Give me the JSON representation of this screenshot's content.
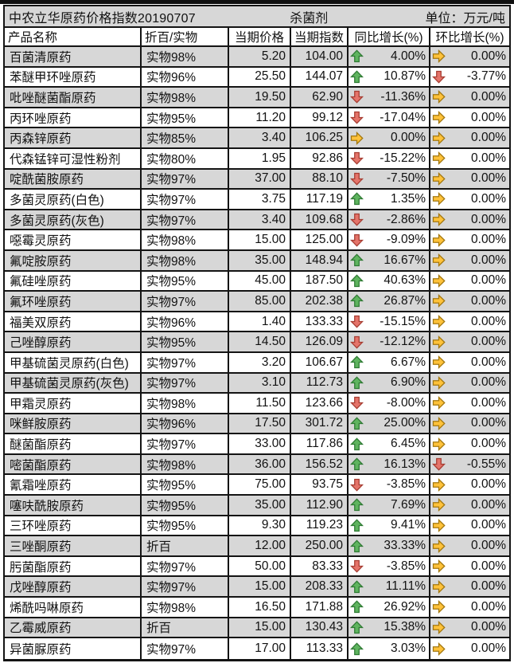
{
  "title": {
    "left": "中农立华原药价格指数20190707",
    "center": "杀菌剂",
    "right": "单位：万元/吨"
  },
  "table": {
    "columns": [
      "产品名称",
      "折百/实物",
      "当期价格",
      "当期指数",
      "同比增长(%)",
      "环比增长(%)"
    ],
    "rows": [
      {
        "name": "百菌清原药",
        "spec": "实物98%",
        "price": "5.20",
        "index": "104.00",
        "yoy": {
          "trend": "up",
          "value": "4.00%"
        },
        "mom": {
          "trend": "flat",
          "value": "0.00%"
        }
      },
      {
        "name": "苯醚甲环唑原药",
        "spec": "实物96%",
        "price": "25.50",
        "index": "144.07",
        "yoy": {
          "trend": "up",
          "value": "10.87%"
        },
        "mom": {
          "trend": "down",
          "value": "-3.77%"
        }
      },
      {
        "name": "吡唑醚菌酯原药",
        "spec": "实物98%",
        "price": "19.50",
        "index": "62.90",
        "yoy": {
          "trend": "down",
          "value": "-11.36%"
        },
        "mom": {
          "trend": "flat",
          "value": "0.00%"
        }
      },
      {
        "name": "丙环唑原药",
        "spec": "实物95%",
        "price": "11.20",
        "index": "99.12",
        "yoy": {
          "trend": "down",
          "value": "-17.04%"
        },
        "mom": {
          "trend": "flat",
          "value": "0.00%"
        }
      },
      {
        "name": "丙森锌原药",
        "spec": "实物85%",
        "price": "3.40",
        "index": "106.25",
        "yoy": {
          "trend": "flat",
          "value": "0.00%"
        },
        "mom": {
          "trend": "flat",
          "value": "0.00%"
        }
      },
      {
        "name": "代森锰锌可湿性粉剂",
        "spec": "实物80%",
        "price": "1.95",
        "index": "92.86",
        "yoy": {
          "trend": "down",
          "value": "-15.22%"
        },
        "mom": {
          "trend": "flat",
          "value": "0.00%"
        }
      },
      {
        "name": "啶酰菌胺原药",
        "spec": "实物97%",
        "price": "37.00",
        "index": "88.10",
        "yoy": {
          "trend": "down",
          "value": "-7.50%"
        },
        "mom": {
          "trend": "flat",
          "value": "0.00%"
        }
      },
      {
        "name": "多菌灵原药(白色)",
        "spec": "实物97%",
        "price": "3.75",
        "index": "117.19",
        "yoy": {
          "trend": "up",
          "value": "1.35%"
        },
        "mom": {
          "trend": "flat",
          "value": "0.00%"
        }
      },
      {
        "name": "多菌灵原药(灰色)",
        "spec": "实物97%",
        "price": "3.40",
        "index": "109.68",
        "yoy": {
          "trend": "down",
          "value": "-2.86%"
        },
        "mom": {
          "trend": "flat",
          "value": "0.00%"
        }
      },
      {
        "name": "噁霉灵原药",
        "spec": "实物98%",
        "price": "15.00",
        "index": "125.00",
        "yoy": {
          "trend": "down",
          "value": "-9.09%"
        },
        "mom": {
          "trend": "flat",
          "value": "0.00%"
        }
      },
      {
        "name": "氟啶胺原药",
        "spec": "实物98%",
        "price": "35.00",
        "index": "148.94",
        "yoy": {
          "trend": "up",
          "value": "16.67%"
        },
        "mom": {
          "trend": "flat",
          "value": "0.00%"
        }
      },
      {
        "name": "氟硅唑原药",
        "spec": "实物95%",
        "price": "45.00",
        "index": "187.50",
        "yoy": {
          "trend": "up",
          "value": "40.63%"
        },
        "mom": {
          "trend": "flat",
          "value": "0.00%"
        }
      },
      {
        "name": "氟环唑原药",
        "spec": "实物97%",
        "price": "85.00",
        "index": "202.38",
        "yoy": {
          "trend": "up",
          "value": "26.87%"
        },
        "mom": {
          "trend": "flat",
          "value": "0.00%"
        }
      },
      {
        "name": "福美双原药",
        "spec": "实物96%",
        "price": "1.40",
        "index": "133.33",
        "yoy": {
          "trend": "down",
          "value": "-15.15%"
        },
        "mom": {
          "trend": "flat",
          "value": "0.00%"
        }
      },
      {
        "name": "己唑醇原药",
        "spec": "实物95%",
        "price": "14.50",
        "index": "126.09",
        "yoy": {
          "trend": "down",
          "value": "-12.12%"
        },
        "mom": {
          "trend": "flat",
          "value": "0.00%"
        }
      },
      {
        "name": "甲基硫菌灵原药(白色)",
        "spec": "实物97%",
        "price": "3.20",
        "index": "106.67",
        "yoy": {
          "trend": "up",
          "value": "6.67%"
        },
        "mom": {
          "trend": "flat",
          "value": "0.00%"
        }
      },
      {
        "name": "甲基硫菌灵原药(灰色)",
        "spec": "实物97%",
        "price": "3.10",
        "index": "112.73",
        "yoy": {
          "trend": "up",
          "value": "6.90%"
        },
        "mom": {
          "trend": "flat",
          "value": "0.00%"
        }
      },
      {
        "name": "甲霜灵原药",
        "spec": "实物98%",
        "price": "11.50",
        "index": "123.66",
        "yoy": {
          "trend": "down",
          "value": "-8.00%"
        },
        "mom": {
          "trend": "flat",
          "value": "0.00%"
        }
      },
      {
        "name": "咪鲜胺原药",
        "spec": "实物96%",
        "price": "17.50",
        "index": "301.72",
        "yoy": {
          "trend": "up",
          "value": "25.00%"
        },
        "mom": {
          "trend": "flat",
          "value": "0.00%"
        }
      },
      {
        "name": "醚菌酯原药",
        "spec": "实物97%",
        "price": "33.00",
        "index": "117.86",
        "yoy": {
          "trend": "up",
          "value": "6.45%"
        },
        "mom": {
          "trend": "flat",
          "value": "0.00%"
        }
      },
      {
        "name": "嘧菌酯原药",
        "spec": "实物98%",
        "price": "36.00",
        "index": "156.52",
        "yoy": {
          "trend": "up",
          "value": "16.13%"
        },
        "mom": {
          "trend": "down",
          "value": "-0.55%"
        }
      },
      {
        "name": "氰霜唑原药",
        "spec": "实物95%",
        "price": "75.00",
        "index": "93.75",
        "yoy": {
          "trend": "down",
          "value": "-3.85%"
        },
        "mom": {
          "trend": "flat",
          "value": "0.00%"
        }
      },
      {
        "name": "噻呋酰胺原药",
        "spec": "实物95%",
        "price": "35.00",
        "index": "112.90",
        "yoy": {
          "trend": "up",
          "value": "7.69%"
        },
        "mom": {
          "trend": "flat",
          "value": "0.00%"
        }
      },
      {
        "name": "三环唑原药",
        "spec": "实物95%",
        "price": "9.30",
        "index": "119.23",
        "yoy": {
          "trend": "up",
          "value": "9.41%"
        },
        "mom": {
          "trend": "flat",
          "value": "0.00%"
        }
      },
      {
        "name": "三唑酮原药",
        "spec": "折百",
        "price": "12.00",
        "index": "250.00",
        "yoy": {
          "trend": "up",
          "value": "33.33%"
        },
        "mom": {
          "trend": "flat",
          "value": "0.00%"
        }
      },
      {
        "name": "肟菌酯原药",
        "spec": "实物97%",
        "price": "50.00",
        "index": "83.33",
        "yoy": {
          "trend": "down",
          "value": "-3.85%"
        },
        "mom": {
          "trend": "flat",
          "value": "0.00%"
        }
      },
      {
        "name": "戊唑醇原药",
        "spec": "实物97%",
        "price": "15.00",
        "index": "208.33",
        "yoy": {
          "trend": "up",
          "value": "11.11%"
        },
        "mom": {
          "trend": "flat",
          "value": "0.00%"
        }
      },
      {
        "name": "烯酰吗啉原药",
        "spec": "实物98%",
        "price": "16.50",
        "index": "171.88",
        "yoy": {
          "trend": "up",
          "value": "26.92%"
        },
        "mom": {
          "trend": "flat",
          "value": "0.00%"
        }
      },
      {
        "name": "乙霉威原药",
        "spec": "折百",
        "price": "15.00",
        "index": "130.43",
        "yoy": {
          "trend": "up",
          "value": "15.38%"
        },
        "mom": {
          "trend": "flat",
          "value": "0.00%"
        }
      },
      {
        "name": "异菌脲原药",
        "spec": "实物97%",
        "price": "17.00",
        "index": "113.33",
        "yoy": {
          "trend": "up",
          "value": "3.03%"
        },
        "mom": {
          "trend": "flat",
          "value": "0.00%"
        }
      }
    ]
  },
  "colors": {
    "alt_row_bg": "#d7d7d7",
    "grid_line": "#141414",
    "up_fill": "#5fb45f",
    "up_stroke": "#2e7a33",
    "down_fill": "#e5746a",
    "down_stroke": "#a63c31",
    "flat_fill": "#ffc23a",
    "flat_stroke": "#a3770e"
  }
}
